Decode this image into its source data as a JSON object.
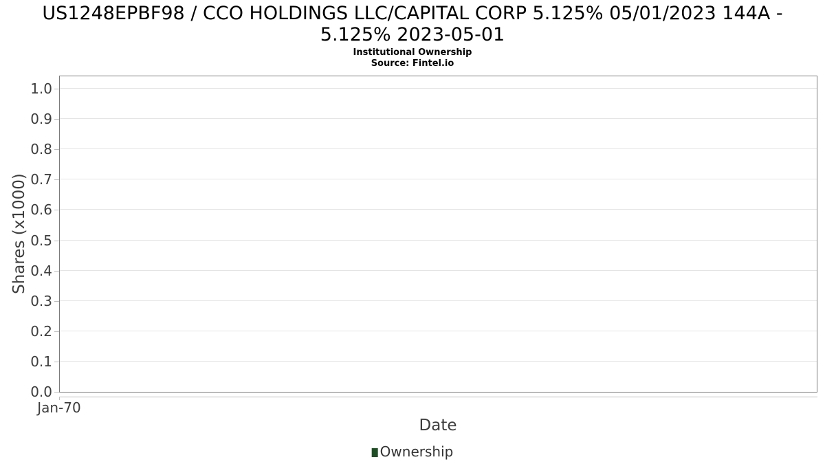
{
  "chart": {
    "title_line1": "US1248EPBF98 / CCO HOLDINGS LLC/CAPITAL CORP 5.125% 05/01/2023 144A -",
    "title_line2": "5.125% 2023-05-01",
    "subtitle": "Institutional Ownership",
    "source": "Source: Fintel.io",
    "ylabel": "Shares (x1000)",
    "xlabel": "Date",
    "x_tick_label": "Jan-70",
    "legend": {
      "label": "Ownership",
      "marker_color": "#1f4e25"
    }
  },
  "chart_data": {
    "type": "line",
    "title": "US1248EPBF98 / CCO HOLDINGS LLC/CAPITAL CORP 5.125% 05/01/2023 144A - 5.125% 2023-05-01",
    "subtitle": "Institutional Ownership",
    "source": "Source: Fintel.io",
    "xlabel": "Date",
    "ylabel": "Shares (x1000)",
    "xticks": [
      "Jan-70"
    ],
    "yticks": [
      "0.0",
      "0.1",
      "0.2",
      "0.3",
      "0.4",
      "0.5",
      "0.6",
      "0.7",
      "0.8",
      "0.9",
      "1.0"
    ],
    "ylim": [
      0.0,
      1.045
    ],
    "grid": true,
    "legend_position": "bottom-center",
    "series": [
      {
        "name": "Ownership",
        "color": "#1f4e25",
        "x": [],
        "y": []
      }
    ]
  },
  "colors": {
    "plot_border": "#7a7a7a",
    "gridline": "#e4e4e4",
    "tick": "#bdbdbd",
    "text": "#3d3d3d",
    "legend_marker": "#1f4e25"
  }
}
